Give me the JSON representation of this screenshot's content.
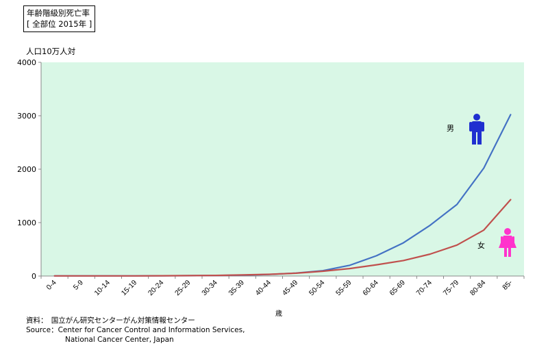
{
  "chart_data": {
    "type": "line",
    "title": "年齢階級別死亡率",
    "subtitle": "[ 全部位 2015年 ]",
    "ylabel": "人口10万人対",
    "xlabel": "歳",
    "ylim": [
      0,
      4000
    ],
    "yticks": [
      "0",
      "1000",
      "2000",
      "3000",
      "4000"
    ],
    "categories": [
      "0-4",
      "5-9",
      "10-14",
      "15-19",
      "20-24",
      "25-29",
      "30-34",
      "35-39",
      "40-44",
      "45-49",
      "50-54",
      "55-59",
      "60-64",
      "65-69",
      "70-74",
      "75-79",
      "80-84",
      "85-"
    ],
    "series": [
      {
        "name": "男",
        "color": "#4472c4",
        "icon": "male-person-icon",
        "icon_color": "#1f2fd0",
        "values": [
          3,
          2,
          2,
          3,
          5,
          7,
          10,
          17,
          30,
          55,
          100,
          200,
          380,
          620,
          950,
          1340,
          2020,
          3020
        ]
      },
      {
        "name": "女",
        "color": "#c0504d",
        "icon": "female-person-icon",
        "icon_color": "#ff33cc",
        "values": [
          3,
          2,
          2,
          3,
          5,
          8,
          12,
          20,
          32,
          52,
          90,
          140,
          210,
          290,
          410,
          580,
          860,
          1430
        ]
      }
    ],
    "plot_background": "#d9f7e6",
    "grid": false
  },
  "source": {
    "line1": "資料：　国立がん研究センターがん対策情報センター",
    "line2": "Source：Center for Cancer Control and Information Services,",
    "line3": "National Cancer Center, Japan"
  }
}
